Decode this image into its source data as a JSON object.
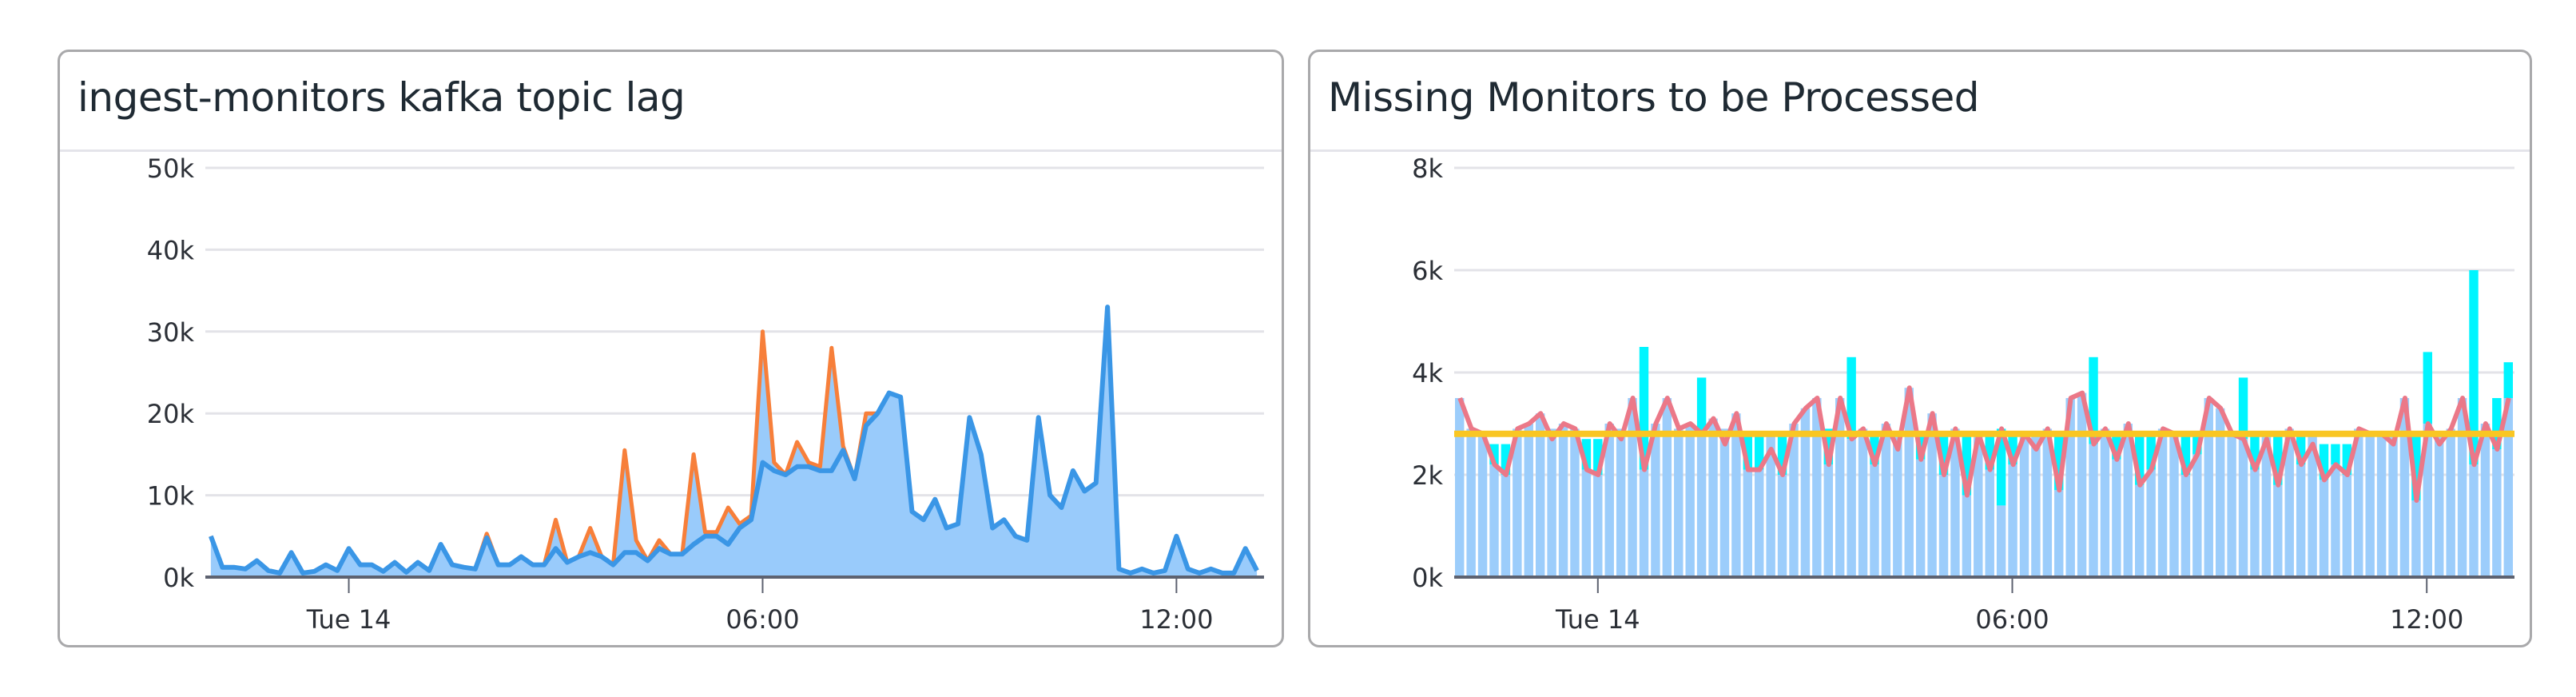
{
  "chart_data": [
    {
      "type": "area",
      "stacked": true,
      "title": "ingest-monitors kafka topic lag",
      "xlabel": "",
      "ylabel": "",
      "ylim": [
        0,
        50000
      ],
      "yticks": [
        "0k",
        "10k",
        "20k",
        "30k",
        "40k",
        "50k"
      ],
      "xticks": [
        {
          "label": "Tue 14",
          "time": "00:00"
        },
        {
          "label": "06:00",
          "time": "06:00"
        },
        {
          "label": "12:00",
          "time": "12:00"
        }
      ],
      "grid": true,
      "x": [
        "22:00",
        "22:10",
        "22:20",
        "22:30",
        "22:40",
        "22:50",
        "23:00",
        "23:10",
        "23:20",
        "23:30",
        "23:40",
        "23:50",
        "00:00",
        "00:10",
        "00:20",
        "00:30",
        "00:40",
        "00:50",
        "01:00",
        "01:10",
        "01:20",
        "01:30",
        "01:40",
        "01:50",
        "02:00",
        "02:10",
        "02:20",
        "02:30",
        "02:40",
        "02:50",
        "03:00",
        "03:10",
        "03:20",
        "03:30",
        "03:40",
        "03:50",
        "04:00",
        "04:10",
        "04:20",
        "04:30",
        "04:40",
        "04:50",
        "05:00",
        "05:10",
        "05:20",
        "05:30",
        "05:40",
        "05:50",
        "06:00",
        "06:10",
        "06:20",
        "06:30",
        "06:40",
        "06:50",
        "07:00",
        "07:10",
        "07:20",
        "07:30",
        "07:40",
        "07:50",
        "08:00",
        "08:10",
        "08:20",
        "08:30",
        "08:40",
        "08:50",
        "09:00",
        "09:10",
        "09:20",
        "09:30",
        "09:40",
        "09:50",
        "10:00",
        "10:10",
        "10:20",
        "10:30",
        "10:40",
        "10:50",
        "11:00",
        "11:10",
        "11:20",
        "11:30",
        "11:40",
        "11:50",
        "12:00",
        "12:10",
        "12:20",
        "12:30",
        "12:40",
        "12:50",
        "13:00",
        "13:10"
      ],
      "series": [
        {
          "color": "#3a96e6",
          "fill": "#99cbfb",
          "values": [
            5000,
            1200,
            1200,
            1000,
            2000,
            800,
            500,
            3000,
            500,
            700,
            1500,
            800,
            3500,
            1500,
            1500,
            700,
            1800,
            600,
            1800,
            800,
            4000,
            1500,
            1200,
            1000,
            4800,
            1500,
            1500,
            2500,
            1500,
            1500,
            3500,
            1800,
            2500,
            3000,
            2500,
            1500,
            3000,
            3000,
            2000,
            3500,
            2800,
            2800,
            4000,
            5000,
            5000,
            4000,
            6000,
            7000,
            14000,
            13000,
            12500,
            13500,
            13500,
            13000,
            13000,
            15500,
            12000,
            18500,
            20000,
            22500,
            22000,
            8000,
            7000,
            9500,
            6000,
            6500,
            19500,
            15000,
            6000,
            7000,
            5000,
            4500,
            19500,
            10000,
            8500,
            13000,
            10500,
            11500,
            33000,
            1000,
            500,
            1000,
            500,
            800,
            5000,
            1000,
            500,
            1000,
            500,
            500,
            3500,
            800
          ]
        },
        {
          "color": "#f77f3a",
          "fill": "#99cbfb",
          "values": [
            0,
            0,
            0,
            0,
            0,
            0,
            0,
            0,
            0,
            0,
            0,
            0,
            0,
            0,
            0,
            0,
            0,
            0,
            0,
            0,
            0,
            0,
            0,
            0,
            500,
            0,
            0,
            0,
            0,
            0,
            3500,
            0,
            0,
            3000,
            0,
            0,
            12500,
            1500,
            0,
            1000,
            0,
            0,
            11000,
            500,
            500,
            4500,
            500,
            500,
            16000,
            1000,
            0,
            3000,
            500,
            500,
            15000,
            500,
            0,
            1500,
            0,
            0,
            0,
            0,
            0,
            0,
            0,
            0,
            0,
            0,
            0,
            0,
            0,
            0,
            0,
            0,
            0,
            0,
            0,
            0,
            0,
            0,
            0,
            0,
            0,
            0,
            0,
            0,
            0,
            0,
            0,
            0,
            0,
            0
          ]
        }
      ]
    },
    {
      "type": "bar",
      "title": "Missing Monitors to be Processed",
      "xlabel": "",
      "ylabel": "",
      "ylim": [
        0,
        8000
      ],
      "yticks": [
        "0k",
        "2k",
        "4k",
        "6k",
        "8k"
      ],
      "xticks": [
        {
          "label": "Tue 14",
          "time": "00:00"
        },
        {
          "label": "06:00",
          "time": "06:00"
        },
        {
          "label": "12:00",
          "time": "12:00"
        }
      ],
      "grid": true,
      "x": [
        "22:00",
        "22:10",
        "22:20",
        "22:30",
        "22:40",
        "22:50",
        "23:00",
        "23:10",
        "23:20",
        "23:30",
        "23:40",
        "23:50",
        "00:00",
        "00:10",
        "00:20",
        "00:30",
        "00:40",
        "00:50",
        "01:00",
        "01:10",
        "01:20",
        "01:30",
        "01:40",
        "01:50",
        "02:00",
        "02:10",
        "02:20",
        "02:30",
        "02:40",
        "02:50",
        "03:00",
        "03:10",
        "03:20",
        "03:30",
        "03:40",
        "03:50",
        "04:00",
        "04:10",
        "04:20",
        "04:30",
        "04:40",
        "04:50",
        "05:00",
        "05:10",
        "05:20",
        "05:30",
        "05:40",
        "05:50",
        "06:00",
        "06:10",
        "06:20",
        "06:30",
        "06:40",
        "06:50",
        "07:00",
        "07:10",
        "07:20",
        "07:30",
        "07:40",
        "07:50",
        "08:00",
        "08:10",
        "08:20",
        "08:30",
        "08:40",
        "08:50",
        "09:00",
        "09:10",
        "09:20",
        "09:30",
        "09:40",
        "09:50",
        "10:00",
        "10:10",
        "10:20",
        "10:30",
        "10:40",
        "10:50",
        "11:00",
        "11:10",
        "11:20",
        "11:30",
        "11:40",
        "11:50",
        "12:00",
        "12:10",
        "12:20",
        "12:30",
        "12:40",
        "12:50",
        "13:00",
        "13:10"
      ],
      "bars": {
        "color": "#9ccdfb",
        "highlight": "#00f5ff",
        "values": [
          3500,
          2900,
          2800,
          2600,
          2600,
          2900,
          3000,
          3200,
          2900,
          3000,
          2900,
          2700,
          2700,
          3000,
          2900,
          3500,
          4500,
          3000,
          3500,
          2900,
          3000,
          3900,
          3100,
          2900,
          3200,
          2800,
          2800,
          2800,
          2800,
          3000,
          3300,
          3500,
          2900,
          3500,
          4300,
          2900,
          2800,
          3000,
          2800,
          3700,
          2800,
          3200,
          2800,
          2900,
          2800,
          2800,
          2800,
          1400,
          2800,
          2800,
          2800,
          2900,
          2800,
          3500,
          3600,
          4300,
          2900,
          2800,
          3000,
          2800,
          2800,
          2900,
          2800,
          2800,
          2800,
          3500,
          3300,
          2800,
          3900,
          2800,
          2800,
          2800,
          2900,
          2800,
          2800,
          2600,
          2600,
          2600,
          2900,
          2800,
          2800,
          2800,
          3500,
          2800,
          4400,
          2800,
          2900,
          3500,
          6000,
          3000,
          3500,
          4200
        ]
      },
      "line": {
        "color": "#eb7888",
        "values": [
          3500,
          2900,
          2800,
          2200,
          2000,
          2900,
          3000,
          3200,
          2700,
          3000,
          2900,
          2100,
          2000,
          3000,
          2700,
          3500,
          2100,
          3000,
          3500,
          2900,
          3000,
          2800,
          3100,
          2600,
          3200,
          2100,
          2100,
          2500,
          2000,
          3000,
          3300,
          3500,
          2200,
          3500,
          2700,
          2900,
          2200,
          3000,
          2500,
          3700,
          2300,
          3200,
          2000,
          2900,
          1600,
          2800,
          2100,
          2900,
          2200,
          2800,
          2500,
          2900,
          1700,
          3500,
          3600,
          2600,
          2900,
          2300,
          3000,
          1800,
          2100,
          2900,
          2800,
          2000,
          2400,
          3500,
          3300,
          2800,
          2700,
          2100,
          2700,
          1800,
          2900,
          2200,
          2600,
          1900,
          2200,
          2000,
          2900,
          2800,
          2800,
          2600,
          3500,
          1500,
          3000,
          2600,
          2900,
          3500,
          2200,
          3000,
          2500,
          3500
        ]
      },
      "threshold": {
        "color": "#f9c623",
        "value": 2800
      }
    }
  ]
}
